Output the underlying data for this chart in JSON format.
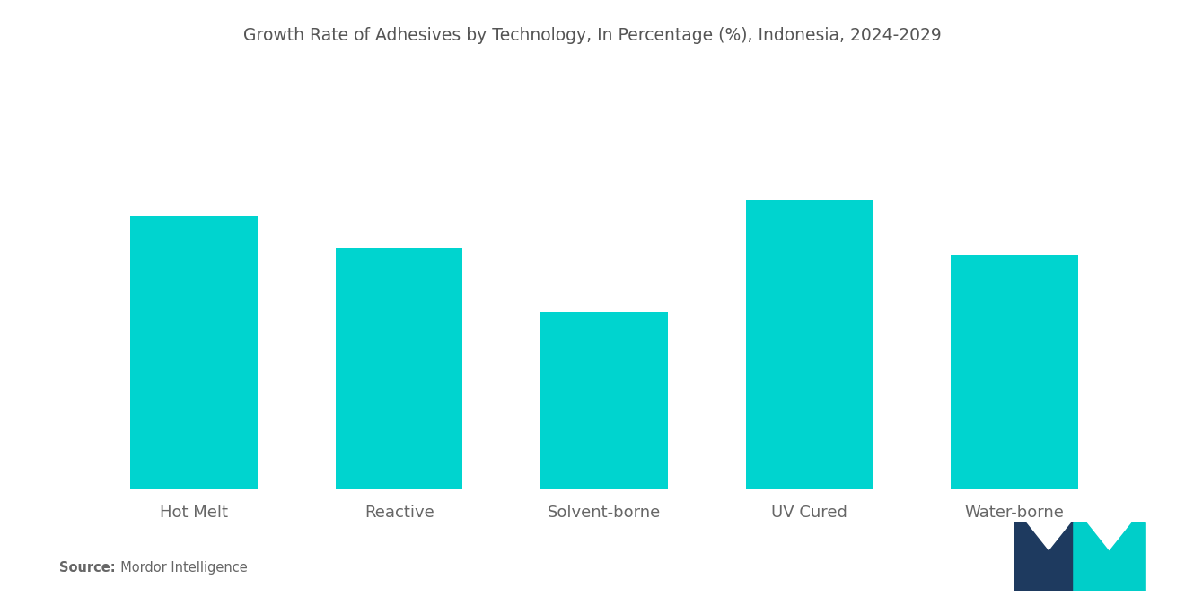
{
  "title": "Growth Rate of Adhesives by Technology, In Percentage (%), Indonesia, 2024-2029",
  "categories": [
    "Hot Melt",
    "Reactive",
    "Solvent-borne",
    "UV Cured",
    "Water-borne"
  ],
  "values": [
    8.5,
    7.5,
    5.5,
    9.0,
    7.3
  ],
  "bar_color": "#00D4CF",
  "background_color": "#ffffff",
  "title_color": "#555555",
  "label_color": "#666666",
  "title_fontsize": 13.5,
  "label_fontsize": 13,
  "source_bold": "Source:",
  "source_rest": "  Mordor Intelligence",
  "ylim": [
    0,
    11.5
  ],
  "bar_width": 0.62,
  "logo_dark": "#1e3a5f",
  "logo_teal": "#00CEC9"
}
